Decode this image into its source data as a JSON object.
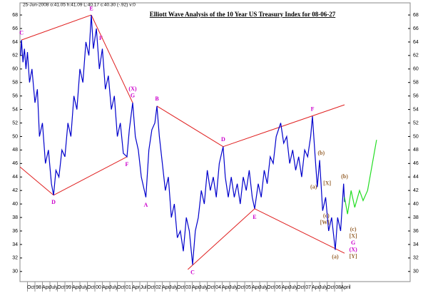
{
  "chart_data": {
    "type": "line",
    "info": "25-Jun-2008 o:41.05 h:41.09 L:40.17 c:40.30 (-.92) v:0",
    "title": "Elliott Wave Analysis of the 10 Year US Treasury Index for 08-06-27",
    "xlim": [
      1997.5,
      2010.52
    ],
    "ylim": [
      28.5,
      69.8
    ],
    "yticks": [
      30,
      32,
      34,
      36,
      38,
      40,
      42,
      44,
      46,
      48,
      50,
      52,
      54,
      56,
      58,
      60,
      62,
      64,
      66,
      68
    ],
    "xticks": [
      {
        "value": 1997.75,
        "label": "Oct"
      },
      {
        "value": 1998,
        "label": "98"
      },
      {
        "value": 1998.25,
        "label": "Apr"
      },
      {
        "value": 1998.5,
        "label": "July"
      },
      {
        "value": 1998.75,
        "label": "Oct"
      },
      {
        "value": 1999,
        "label": "99"
      },
      {
        "value": 1999.25,
        "label": "Apr"
      },
      {
        "value": 1999.5,
        "label": "July"
      },
      {
        "value": 1999.75,
        "label": "Oct"
      },
      {
        "value": 2000,
        "label": "00"
      },
      {
        "value": 2000.25,
        "label": "Apr"
      },
      {
        "value": 2000.5,
        "label": "July"
      },
      {
        "value": 2000.75,
        "label": "Oct"
      },
      {
        "value": 2001,
        "label": "01"
      },
      {
        "value": 2001.25,
        "label": "Apr"
      },
      {
        "value": 2001.5,
        "label": "Jul"
      },
      {
        "value": 2001.75,
        "label": "Oct"
      },
      {
        "value": 2002,
        "label": "02"
      },
      {
        "value": 2002.25,
        "label": "Apr"
      },
      {
        "value": 2002.5,
        "label": "July"
      },
      {
        "value": 2002.75,
        "label": "Oct"
      },
      {
        "value": 2003,
        "label": "03"
      },
      {
        "value": 2003.25,
        "label": "Apr"
      },
      {
        "value": 2003.5,
        "label": "July"
      },
      {
        "value": 2003.75,
        "label": "Oct"
      },
      {
        "value": 2004,
        "label": "04"
      },
      {
        "value": 2004.25,
        "label": "Apr"
      },
      {
        "value": 2004.5,
        "label": "July"
      },
      {
        "value": 2004.75,
        "label": "Oct"
      },
      {
        "value": 2005,
        "label": "05"
      },
      {
        "value": 2005.25,
        "label": "Apr"
      },
      {
        "value": 2005.5,
        "label": "July"
      },
      {
        "value": 2005.75,
        "label": "Oct"
      },
      {
        "value": 2006,
        "label": "06"
      },
      {
        "value": 2006.25,
        "label": "Apr"
      },
      {
        "value": 2006.5,
        "label": "July"
      },
      {
        "value": 2006.75,
        "label": "Oct"
      },
      {
        "value": 2007,
        "label": "07"
      },
      {
        "value": 2007.25,
        "label": "Apr"
      },
      {
        "value": 2007.5,
        "label": "July"
      },
      {
        "value": 2007.75,
        "label": "Oct"
      },
      {
        "value": 2008,
        "label": "08"
      },
      {
        "value": 2008.25,
        "label": "April"
      }
    ],
    "series": [
      {
        "color": "#0000cc",
        "x": [
          1997.52,
          1997.55,
          1997.6,
          1997.65,
          1997.7,
          1997.75,
          1997.82,
          1997.9,
          1998.0,
          1998.08,
          1998.15,
          1998.25,
          1998.35,
          1998.45,
          1998.55,
          1998.62,
          1998.7,
          1998.8,
          1998.9,
          1999.0,
          1999.1,
          1999.2,
          1999.3,
          1999.4,
          1999.5,
          1999.6,
          1999.7,
          1999.8,
          1999.88,
          1999.95,
          2000.05,
          2000.15,
          2000.25,
          2000.35,
          2000.45,
          2000.55,
          2000.65,
          2000.75,
          2000.85,
          2000.95,
          2001.07,
          2001.15,
          2001.26,
          2001.35,
          2001.45,
          2001.55,
          2001.7,
          2001.8,
          2001.9,
          2002.0,
          2002.07,
          2002.15,
          2002.25,
          2002.35,
          2002.45,
          2002.55,
          2002.65,
          2002.75,
          2002.85,
          2002.95,
          2003.05,
          2003.15,
          2003.26,
          2003.35,
          2003.45,
          2003.55,
          2003.65,
          2003.75,
          2003.85,
          2003.95,
          2004.05,
          2004.15,
          2004.28,
          2004.35,
          2004.45,
          2004.55,
          2004.65,
          2004.75,
          2004.85,
          2004.95,
          2005.05,
          2005.15,
          2005.25,
          2005.33,
          2005.45,
          2005.55,
          2005.65,
          2005.75,
          2005.85,
          2005.95,
          2006.05,
          2006.2,
          2006.3,
          2006.4,
          2006.5,
          2006.6,
          2006.7,
          2006.8,
          2006.9,
          2007.0,
          2007.1,
          2007.2,
          2007.26,
          2007.35,
          2007.42,
          2007.5,
          2007.6,
          2007.7,
          2007.8,
          2007.9,
          2008.02,
          2008.1,
          2008.2,
          2008.3,
          2008.33
        ],
        "values": [
          62,
          64.3,
          61,
          63,
          60,
          62.5,
          58,
          60,
          55,
          57,
          50,
          52,
          46,
          48,
          43,
          41.3,
          45,
          44,
          48,
          47,
          52,
          50,
          56,
          54,
          60,
          58,
          64,
          62,
          68,
          63,
          66,
          60,
          63,
          57,
          59,
          54,
          56,
          50,
          52,
          47.5,
          47,
          51,
          55,
          50,
          48,
          44,
          41,
          48,
          51,
          52,
          54.5,
          50,
          46,
          42,
          44,
          38,
          40,
          35,
          36,
          33,
          38,
          36,
          31,
          36,
          38,
          42,
          40,
          45,
          42,
          44,
          41,
          46,
          48.5,
          44,
          41,
          44,
          41,
          43,
          40,
          44,
          42,
          45,
          41,
          39.3,
          43,
          41,
          45,
          43,
          47,
          46,
          50,
          52,
          49,
          50,
          46,
          48,
          45,
          47,
          44,
          48,
          47,
          50,
          53,
          47,
          42.5,
          46.5,
          39,
          41,
          36,
          38,
          33.2,
          38,
          36,
          43,
          40.3
        ]
      },
      {
        "color": "#22dd22",
        "x": [
          2008.33,
          2008.43,
          2008.55,
          2008.67,
          2008.83,
          2008.95,
          2009.1,
          2009.4
        ],
        "values": [
          41,
          38.5,
          42,
          39.5,
          42,
          40.5,
          42,
          49.5
        ]
      }
    ],
    "trendline_color": "#e02020",
    "trendlines": [
      {
        "x": [
          1997.55,
          1999.88
        ],
        "values": [
          64.3,
          68
        ]
      },
      {
        "x": [
          1999.88,
          2001.26
        ],
        "values": [
          68,
          55
        ]
      },
      {
        "x": [
          1997.5,
          1998.62
        ],
        "values": [
          45.5,
          41.3
        ]
      },
      {
        "x": [
          1998.62,
          2001.07
        ],
        "values": [
          41.3,
          47
        ]
      },
      {
        "x": [
          2002.07,
          2004.28
        ],
        "values": [
          54.5,
          48.5
        ]
      },
      {
        "x": [
          2004.28,
          2008.33
        ],
        "values": [
          48.5,
          54.7
        ]
      },
      {
        "x": [
          2003.1,
          2005.33
        ],
        "values": [
          30.3,
          39.3
        ]
      },
      {
        "x": [
          2005.33,
          2008.33
        ],
        "values": [
          39.3,
          32.7
        ]
      }
    ],
    "wave_labels": [
      {
        "label": "C",
        "x": 1997.55,
        "y": 65.3,
        "color": "#cc00cc"
      },
      {
        "label": "D",
        "x": 1998.62,
        "y": 40.2,
        "color": "#cc00cc"
      },
      {
        "label": "E",
        "x": 1999.88,
        "y": 68.9,
        "color": "#cc00cc"
      },
      {
        "label": "F",
        "x": 2000.2,
        "y": 64.5,
        "color": "#cc00cc"
      },
      {
        "label": "(X)",
        "x": 2001.26,
        "y": 57,
        "color": "#cc00cc"
      },
      {
        "label": "G",
        "x": 2001.26,
        "y": 56,
        "color": "#cc00cc"
      },
      {
        "label": "F",
        "x": 2001.07,
        "y": 45.8,
        "color": "#cc00cc"
      },
      {
        "label": "B",
        "x": 2002.07,
        "y": 55.5,
        "color": "#cc00cc"
      },
      {
        "label": "A",
        "x": 2001.7,
        "y": 39.8,
        "color": "#cc00cc"
      },
      {
        "label": "C",
        "x": 2003.26,
        "y": 29.8,
        "color": "#cc00cc"
      },
      {
        "label": "D",
        "x": 2004.28,
        "y": 49.5,
        "color": "#cc00cc"
      },
      {
        "label": "E",
        "x": 2005.33,
        "y": 38,
        "color": "#cc00cc"
      },
      {
        "label": "F",
        "x": 2007.26,
        "y": 54,
        "color": "#cc00cc"
      },
      {
        "label": "(b)",
        "x": 2007.55,
        "y": 47.5,
        "color": "#996633"
      },
      {
        "label": "(a)",
        "x": 2007.3,
        "y": 42.5,
        "color": "#996633"
      },
      {
        "label": "[X]",
        "x": 2007.75,
        "y": 43,
        "color": "#996633"
      },
      {
        "label": "(c)",
        "x": 2007.72,
        "y": 38.2,
        "color": "#996633"
      },
      {
        "label": "[W]",
        "x": 2007.67,
        "y": 37.2,
        "color": "#996633"
      },
      {
        "label": "(a)",
        "x": 2008.02,
        "y": 32.1,
        "color": "#996633"
      },
      {
        "label": "(b)",
        "x": 2008.33,
        "y": 44,
        "color": "#996633"
      },
      {
        "label": "(c)",
        "x": 2008.62,
        "y": 36.2,
        "color": "#996633"
      },
      {
        "label": "[X]",
        "x": 2008.62,
        "y": 35.2,
        "color": "#996633"
      },
      {
        "label": "G",
        "x": 2008.62,
        "y": 34.2,
        "color": "#cc00cc"
      },
      {
        "label": "(X)",
        "x": 2008.62,
        "y": 33.2,
        "color": "#cc00cc"
      },
      {
        "label": "[Y]",
        "x": 2008.62,
        "y": 32.2,
        "color": "#996633"
      }
    ]
  }
}
